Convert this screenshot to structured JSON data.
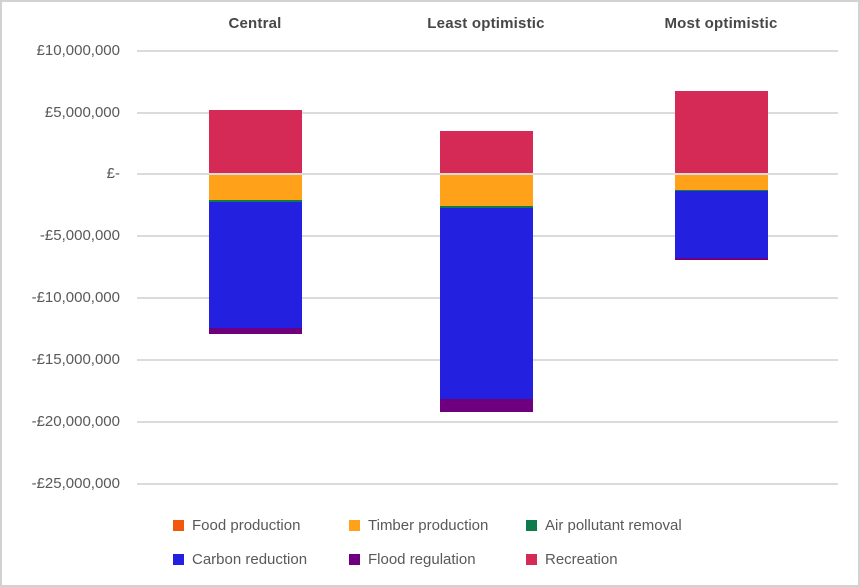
{
  "chart_data": {
    "type": "bar",
    "subtype": "stacked-column",
    "title": "",
    "xlabel": "",
    "ylabel": "",
    "categories": [
      "Central",
      "Least optimistic",
      "Most optimistic"
    ],
    "series": [
      {
        "name": "Food production",
        "color": "#F1580D",
        "values": [
          0,
          0,
          0
        ]
      },
      {
        "name": "Timber production",
        "color": "#FFA21A",
        "values": [
          -2000000,
          -2500000,
          -1200000
        ]
      },
      {
        "name": "Air pollutant removal",
        "color": "#0F7B4D",
        "values": [
          -150000,
          -100000,
          -100000
        ]
      },
      {
        "name": "Carbon reduction",
        "color": "#2320DF",
        "values": [
          -10150000,
          -15450000,
          -5400000
        ]
      },
      {
        "name": "Flood regulation",
        "color": "#6E0080",
        "values": [
          -500000,
          -1100000,
          -150000
        ]
      },
      {
        "name": "Recreation",
        "color": "#D42A55",
        "values": [
          5100000,
          3400000,
          6700000
        ]
      }
    ],
    "y_ticks": [
      "£10,000,000",
      "£5,000,000",
      "£-",
      "-£5,000,000",
      "-£10,000,000",
      "-£15,000,000",
      "-£20,000,000",
      "-£25,000,000"
    ],
    "y_tick_values": [
      10000000,
      5000000,
      0,
      -5000000,
      -10000000,
      -15000000,
      -20000000,
      -25000000
    ],
    "ylim": [
      -25000000,
      10000000
    ],
    "grid": true,
    "legend_position": "bottom",
    "colors": {
      "text": "#595959",
      "header_text": "#474747",
      "gridline": "#DBDBDB",
      "frame_border": "#D2D2D2",
      "background": "#FFFFFF"
    }
  }
}
